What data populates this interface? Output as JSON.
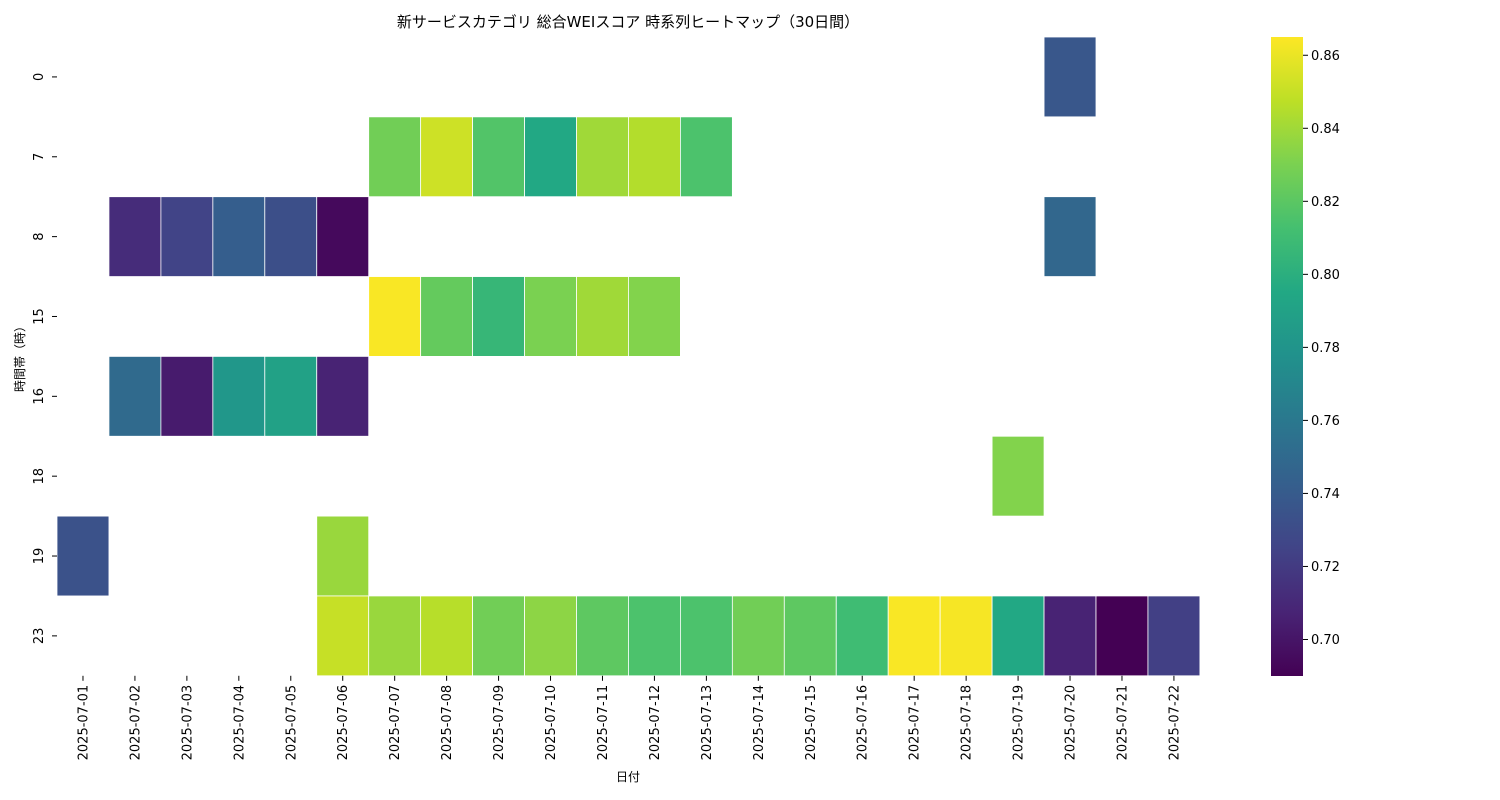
{
  "chart_data": {
    "type": "heatmap",
    "title": "新サービスカテゴリ 総合WEIスコア 時系列ヒートマップ（30日間）",
    "xlabel": "日付",
    "ylabel": "時間帯（時）",
    "x": [
      "2025-07-01",
      "2025-07-02",
      "2025-07-03",
      "2025-07-04",
      "2025-07-05",
      "2025-07-06",
      "2025-07-07",
      "2025-07-08",
      "2025-07-09",
      "2025-07-10",
      "2025-07-11",
      "2025-07-12",
      "2025-07-13",
      "2025-07-14",
      "2025-07-15",
      "2025-07-16",
      "2025-07-17",
      "2025-07-18",
      "2025-07-19",
      "2025-07-20",
      "2025-07-21",
      "2025-07-22"
    ],
    "y": [
      "0",
      "7",
      "8",
      "15",
      "16",
      "18",
      "19",
      "23"
    ],
    "values": [
      [
        null,
        null,
        null,
        null,
        null,
        null,
        null,
        null,
        null,
        null,
        null,
        null,
        null,
        null,
        null,
        null,
        null,
        null,
        null,
        0.737,
        null,
        null
      ],
      [
        null,
        null,
        null,
        null,
        null,
        null,
        0.827,
        0.852,
        0.817,
        0.795,
        0.84,
        0.845,
        0.815,
        null,
        null,
        null,
        null,
        null,
        null,
        null,
        null,
        null
      ],
      [
        null,
        0.712,
        0.725,
        0.742,
        0.732,
        0.694,
        null,
        null,
        null,
        null,
        null,
        null,
        null,
        null,
        null,
        null,
        null,
        null,
        null,
        0.748,
        null,
        null
      ],
      [
        null,
        null,
        null,
        null,
        null,
        null,
        0.864,
        0.823,
        0.806,
        0.83,
        0.84,
        0.832,
        null,
        null,
        null,
        null,
        null,
        null,
        null,
        null,
        null,
        null
      ],
      [
        null,
        0.75,
        0.703,
        0.782,
        0.79,
        0.707,
        null,
        null,
        null,
        null,
        null,
        null,
        null,
        null,
        null,
        null,
        null,
        null,
        null,
        null,
        null,
        null
      ],
      [
        null,
        null,
        null,
        null,
        null,
        null,
        null,
        null,
        null,
        null,
        null,
        null,
        null,
        null,
        null,
        null,
        null,
        null,
        0.832,
        null,
        null,
        null
      ],
      [
        0.734,
        null,
        null,
        null,
        null,
        0.838,
        null,
        null,
        null,
        null,
        null,
        null,
        null,
        null,
        null,
        null,
        null,
        null,
        null,
        null,
        null,
        null
      ],
      [
        null,
        null,
        null,
        null,
        null,
        0.85,
        0.838,
        0.846,
        0.827,
        0.835,
        0.821,
        0.815,
        0.815,
        0.827,
        0.821,
        0.81,
        0.864,
        0.863,
        0.795,
        0.707,
        0.69,
        0.723
      ]
    ],
    "colorscale": "viridis",
    "vmin": 0.69,
    "vmax": 0.865,
    "colorbar_ticks": [
      "0.70",
      "0.72",
      "0.74",
      "0.76",
      "0.78",
      "0.80",
      "0.82",
      "0.84",
      "0.86"
    ],
    "grid": false
  }
}
